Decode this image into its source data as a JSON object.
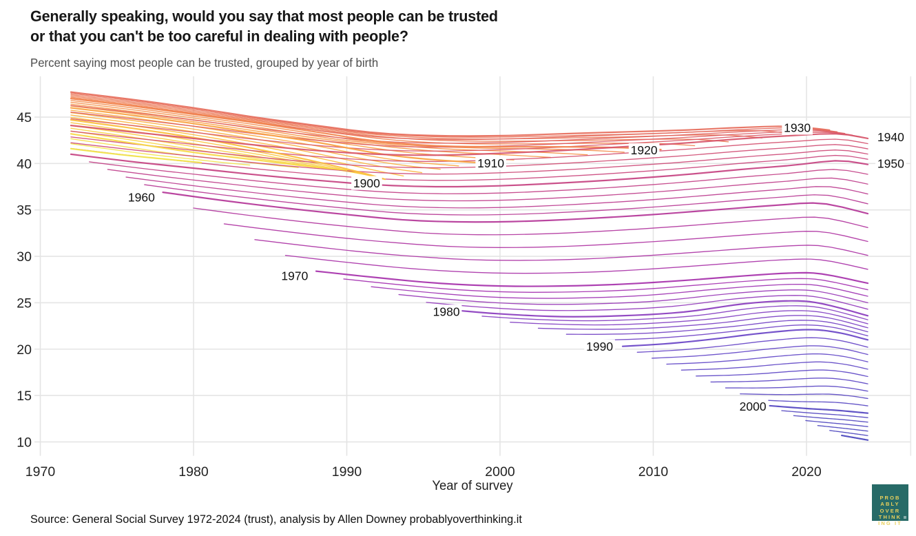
{
  "header": {
    "title": "Generally speaking, would you say that most people can be trusted\nor that you can't be too careful in dealing with people?",
    "subtitle": "Percent saying most people can be trusted, grouped by year of birth"
  },
  "footer": {
    "source": "Source: General Social Survey 1972-2024 (trust), analysis by Allen Downey probablyoverthinking.it"
  },
  "logo": {
    "text": "PROB\nABLY\nOVER\nTHINK\nING IT",
    "bg": "#276a67",
    "fg": "#e9d05c"
  },
  "chart_data": {
    "type": "line",
    "title": "Generally speaking, would you say that most people can be trusted or that you can't be too careful in dealing with people?",
    "subtitle": "Percent saying most people can be trusted, grouped by year of birth",
    "x_axis_label": "Year of survey",
    "x_ticks": [
      1970,
      1980,
      1990,
      2000,
      2010,
      2020
    ],
    "y_ticks": [
      10,
      15,
      20,
      25,
      30,
      35,
      40,
      45
    ],
    "x_range": [
      1969.5,
      2026.8
    ],
    "y_range": [
      8.5,
      49.4
    ],
    "grid": true,
    "legend": "none, cohorts labeled inline",
    "styles": {
      "grid_color": "#e4e4e4",
      "tick_label_color": "#222222",
      "cohort_label_color": "#111111",
      "line_width_anchor": 2.2,
      "line_width_intermediate": 1.35,
      "line_opacity": 0.93
    },
    "color_stops": [
      [
        1883,
        "#f2e94e"
      ],
      [
        1892,
        "#f8d545"
      ],
      [
        1902,
        "#fcba3b"
      ],
      [
        1912,
        "#f89c43"
      ],
      [
        1922,
        "#f07f4f"
      ],
      [
        1932,
        "#e3685e"
      ],
      [
        1942,
        "#d4516f"
      ],
      [
        1952,
        "#c34187"
      ],
      [
        1962,
        "#b1369e"
      ],
      [
        1972,
        "#a532b0"
      ],
      [
        1982,
        "#8540c2"
      ],
      [
        1992,
        "#6347c8"
      ],
      [
        2006,
        "#4b47bd"
      ]
    ],
    "series": [
      {
        "birth": 1883,
        "points": [
          [
            1972,
            41.6
          ],
          [
            1975,
            41.0
          ],
          [
            1978,
            40.5
          ],
          [
            1980.5,
            40.1
          ]
        ]
      },
      {
        "birth": 1890,
        "points": [
          [
            1972,
            43.2
          ],
          [
            1976,
            42.2
          ],
          [
            1980,
            41.2
          ],
          [
            1984,
            40.4
          ],
          [
            1987.5,
            39.7
          ],
          [
            1990,
            39.3
          ]
        ]
      },
      {
        "birth": 1900,
        "points": [
          [
            1972,
            44.7
          ],
          [
            1976,
            43.8
          ],
          [
            1980,
            42.8
          ],
          [
            1984,
            41.6
          ],
          [
            1988,
            40.2
          ],
          [
            1991,
            39.0
          ],
          [
            1992.5,
            38.3
          ]
        ]
      },
      {
        "birth": 1910,
        "points": [
          [
            1972,
            46.0
          ],
          [
            1976,
            45.2
          ],
          [
            1980,
            44.3
          ],
          [
            1984,
            43.3
          ],
          [
            1988,
            42.3
          ],
          [
            1992,
            41.1
          ],
          [
            1995,
            40.5
          ],
          [
            1998.5,
            40.1
          ]
        ]
      },
      {
        "birth": 1920,
        "points": [
          [
            1972,
            47.0
          ],
          [
            1976,
            46.2
          ],
          [
            1980,
            45.3
          ],
          [
            1984,
            44.4
          ],
          [
            1988,
            43.4
          ],
          [
            1992,
            42.4
          ],
          [
            1996,
            41.9
          ],
          [
            2000,
            41.8
          ],
          [
            2004,
            41.8
          ],
          [
            2008,
            41.7
          ],
          [
            2010.5,
            41.5
          ]
        ]
      },
      {
        "birth": 1930,
        "points": [
          [
            1972,
            47.7
          ],
          [
            1976,
            46.9
          ],
          [
            1980,
            46.0
          ],
          [
            1984,
            45.0
          ],
          [
            1988,
            44.1
          ],
          [
            1992,
            43.3
          ],
          [
            1996,
            43.0
          ],
          [
            2000,
            43.0
          ],
          [
            2004,
            43.2
          ],
          [
            2008,
            43.4
          ],
          [
            2012,
            43.6
          ],
          [
            2016,
            43.9
          ],
          [
            2019,
            44.0
          ],
          [
            2021.5,
            43.6
          ]
        ]
      },
      {
        "birth": 1940,
        "points": [
          [
            1972,
            44.1
          ],
          [
            1976,
            43.4
          ],
          [
            1980,
            42.7
          ],
          [
            1984,
            42.0
          ],
          [
            1988,
            41.4
          ],
          [
            1992,
            41.0
          ],
          [
            1996,
            40.9
          ],
          [
            2000,
            41.1
          ],
          [
            2004,
            41.4
          ],
          [
            2008,
            41.8
          ],
          [
            2012,
            42.2
          ],
          [
            2016,
            42.7
          ],
          [
            2019,
            43.0
          ],
          [
            2022,
            43.2
          ],
          [
            2024,
            42.7
          ]
        ]
      },
      {
        "birth": 1950,
        "points": [
          [
            1972,
            41.0
          ],
          [
            1976,
            40.2
          ],
          [
            1980,
            39.5
          ],
          [
            1984,
            38.8
          ],
          [
            1988,
            38.2
          ],
          [
            1992,
            37.7
          ],
          [
            1996,
            37.5
          ],
          [
            2000,
            37.6
          ],
          [
            2004,
            37.9
          ],
          [
            2008,
            38.3
          ],
          [
            2012,
            38.8
          ],
          [
            2016,
            39.4
          ],
          [
            2019,
            39.8
          ],
          [
            2022,
            40.3
          ],
          [
            2024,
            39.9
          ]
        ]
      },
      {
        "birth": 1960,
        "points": [
          [
            1978,
            36.9
          ],
          [
            1982,
            36.0
          ],
          [
            1986,
            35.2
          ],
          [
            1990,
            34.5
          ],
          [
            1994,
            33.9
          ],
          [
            1998,
            33.7
          ],
          [
            2002,
            33.8
          ],
          [
            2006,
            34.1
          ],
          [
            2010,
            34.5
          ],
          [
            2014,
            35.0
          ],
          [
            2018,
            35.5
          ],
          [
            2021,
            35.7
          ],
          [
            2024,
            34.6
          ]
        ]
      },
      {
        "birth": 1970,
        "points": [
          [
            1988,
            28.4
          ],
          [
            1992,
            27.7
          ],
          [
            1996,
            27.1
          ],
          [
            2000,
            26.8
          ],
          [
            2004,
            26.8
          ],
          [
            2008,
            27.0
          ],
          [
            2012,
            27.4
          ],
          [
            2016,
            27.9
          ],
          [
            2019,
            28.2
          ],
          [
            2021,
            28.1
          ],
          [
            2024,
            27.1
          ]
        ]
      },
      {
        "birth": 1980,
        "points": [
          [
            1997,
            24.2
          ],
          [
            2000,
            23.8
          ],
          [
            2004,
            23.5
          ],
          [
            2008,
            23.6
          ],
          [
            2012,
            24.0
          ],
          [
            2016,
            24.9
          ],
          [
            2019,
            25.2
          ],
          [
            2021,
            24.9
          ],
          [
            2024,
            23.6
          ]
        ]
      },
      {
        "birth": 1990,
        "points": [
          [
            2008,
            20.3
          ],
          [
            2011,
            20.6
          ],
          [
            2014,
            21.1
          ],
          [
            2017,
            21.7
          ],
          [
            2020,
            22.1
          ],
          [
            2022,
            21.8
          ],
          [
            2024,
            21.0
          ]
        ]
      },
      {
        "birth": 2000,
        "points": [
          [
            2017.6,
            13.9
          ],
          [
            2020,
            13.6
          ],
          [
            2022,
            13.4
          ],
          [
            2024,
            13.1
          ]
        ]
      },
      {
        "birth": 2006,
        "points": [
          [
            2022.3,
            10.7
          ],
          [
            2024,
            10.2
          ]
        ]
      }
    ],
    "intermediates_per_gap": [
      2,
      4,
      4,
      4,
      4,
      4,
      4,
      4,
      4,
      4,
      5,
      9,
      5
    ],
    "cohort_labels": [
      {
        "text": "1900",
        "year": 1991.3,
        "value": 37.9
      },
      {
        "text": "1910",
        "year": 1999.4,
        "value": 40.05
      },
      {
        "text": "1920",
        "year": 2009.4,
        "value": 41.45
      },
      {
        "text": "1930",
        "year": 2019.4,
        "value": 43.85
      },
      {
        "text": "1940",
        "year": 2025.5,
        "value": 42.85
      },
      {
        "text": "1950",
        "year": 2025.5,
        "value": 40.0
      },
      {
        "text": "1960",
        "year": 1976.6,
        "value": 36.35
      },
      {
        "text": "1970",
        "year": 1986.6,
        "value": 27.9
      },
      {
        "text": "1980",
        "year": 1996.5,
        "value": 24.05
      },
      {
        "text": "1990",
        "year": 2006.5,
        "value": 20.3
      },
      {
        "text": "2000",
        "year": 2016.5,
        "value": 13.85
      }
    ]
  }
}
